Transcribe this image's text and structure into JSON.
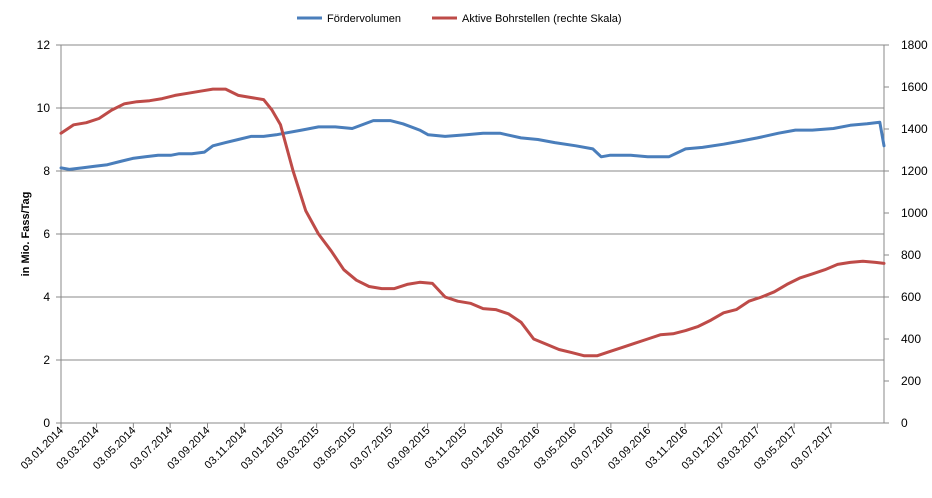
{
  "chart_data": {
    "type": "line",
    "title": "",
    "ylabel": "in Mio. Fass/Tag",
    "y2label": "",
    "ylim": [
      0,
      12
    ],
    "y2lim": [
      0,
      1800
    ],
    "yticks": [
      "0",
      "2",
      "4",
      "6",
      "8",
      "10",
      "12"
    ],
    "y2ticks": [
      "0",
      "200",
      "400",
      "600",
      "800",
      "1000",
      "1200",
      "1400",
      "1600",
      "1800"
    ],
    "xlim": [
      "2014-01-03",
      "2017-09-29"
    ],
    "xticks": [
      "03.01.2014",
      "03.03.2014",
      "03.05.2014",
      "03.07.2014",
      "03.09.2014",
      "03.11.2014",
      "03.01.2015",
      "03.03.2015",
      "03.05.2015",
      "03.07.2015",
      "03.09.2015",
      "03.11.2015",
      "03.01.2016",
      "03.03.2016",
      "03.05.2016",
      "03.07.2016",
      "03.09.2016",
      "03.11.2016",
      "03.01.2017",
      "03.03.2017",
      "03.05.2017",
      "03.07.2017"
    ],
    "grid": true,
    "legend_position": "top-center",
    "series": [
      {
        "name": "Fördervolumen",
        "axis": "left",
        "color": "#4A7EBB",
        "x": [
          "2014-01-03",
          "2014-01-17",
          "2014-02-07",
          "2014-02-28",
          "2014-03-21",
          "2014-04-11",
          "2014-05-02",
          "2014-05-23",
          "2014-06-13",
          "2014-07-04",
          "2014-07-18",
          "2014-08-08",
          "2014-08-29",
          "2014-09-12",
          "2014-10-03",
          "2014-10-24",
          "2014-11-14",
          "2014-12-05",
          "2014-12-26",
          "2015-01-09",
          "2015-02-06",
          "2015-03-06",
          "2015-04-03",
          "2015-05-01",
          "2015-06-05",
          "2015-07-03",
          "2015-07-24",
          "2015-08-21",
          "2015-09-04",
          "2015-10-02",
          "2015-11-06",
          "2015-12-04",
          "2016-01-01",
          "2016-02-05",
          "2016-03-04",
          "2016-04-01",
          "2016-05-06",
          "2016-06-03",
          "2016-06-17",
          "2016-07-01",
          "2016-08-05",
          "2016-09-02",
          "2016-10-07",
          "2016-11-04",
          "2016-12-02",
          "2017-01-06",
          "2017-02-03",
          "2017-03-03",
          "2017-04-07",
          "2017-05-05",
          "2017-06-02",
          "2017-07-07",
          "2017-08-04",
          "2017-09-01",
          "2017-09-22",
          "2017-09-29"
        ],
        "values": [
          8.1,
          8.05,
          8.1,
          8.15,
          8.2,
          8.3,
          8.4,
          8.45,
          8.5,
          8.5,
          8.55,
          8.55,
          8.6,
          8.8,
          8.9,
          9.0,
          9.1,
          9.1,
          9.15,
          9.2,
          9.3,
          9.4,
          9.4,
          9.35,
          9.6,
          9.6,
          9.5,
          9.3,
          9.15,
          9.1,
          9.15,
          9.2,
          9.2,
          9.05,
          9.0,
          8.9,
          8.8,
          8.7,
          8.45,
          8.5,
          8.5,
          8.45,
          8.45,
          8.7,
          8.75,
          8.85,
          8.95,
          9.05,
          9.2,
          9.3,
          9.3,
          9.35,
          9.45,
          9.5,
          9.55,
          8.8
        ]
      },
      {
        "name": "Aktive Bohrstellen (rechte Skala)",
        "axis": "right",
        "color": "#BE4B48",
        "x": [
          "2014-01-03",
          "2014-01-24",
          "2014-02-14",
          "2014-03-07",
          "2014-03-28",
          "2014-04-18",
          "2014-05-09",
          "2014-05-30",
          "2014-06-20",
          "2014-07-11",
          "2014-08-01",
          "2014-08-22",
          "2014-09-12",
          "2014-10-03",
          "2014-10-24",
          "2014-11-14",
          "2014-12-05",
          "2014-12-19",
          "2015-01-02",
          "2015-01-23",
          "2015-02-13",
          "2015-03-06",
          "2015-03-27",
          "2015-04-17",
          "2015-05-08",
          "2015-05-29",
          "2015-06-19",
          "2015-07-10",
          "2015-07-31",
          "2015-08-21",
          "2015-09-11",
          "2015-10-02",
          "2015-10-23",
          "2015-11-13",
          "2015-12-04",
          "2015-12-25",
          "2016-01-15",
          "2016-02-05",
          "2016-02-26",
          "2016-03-18",
          "2016-04-08",
          "2016-04-29",
          "2016-05-20",
          "2016-06-10",
          "2016-07-01",
          "2016-07-22",
          "2016-08-12",
          "2016-09-02",
          "2016-09-23",
          "2016-10-14",
          "2016-11-04",
          "2016-11-25",
          "2016-12-16",
          "2017-01-06",
          "2017-01-27",
          "2017-02-17",
          "2017-03-10",
          "2017-03-31",
          "2017-04-21",
          "2017-05-12",
          "2017-06-02",
          "2017-06-23",
          "2017-07-14",
          "2017-08-04",
          "2017-08-25",
          "2017-09-15",
          "2017-09-29"
        ],
        "values": [
          1380,
          1420,
          1430,
          1450,
          1490,
          1520,
          1530,
          1535,
          1545,
          1560,
          1570,
          1580,
          1590,
          1590,
          1560,
          1550,
          1540,
          1490,
          1420,
          1200,
          1010,
          900,
          820,
          730,
          680,
          650,
          640,
          640,
          660,
          670,
          665,
          600,
          580,
          570,
          545,
          540,
          520,
          480,
          400,
          375,
          350,
          335,
          320,
          320,
          340,
          360,
          380,
          400,
          420,
          425,
          440,
          460,
          490,
          525,
          540,
          580,
          600,
          625,
          660,
          690,
          710,
          730,
          755,
          765,
          770,
          765,
          760
        ]
      }
    ]
  }
}
